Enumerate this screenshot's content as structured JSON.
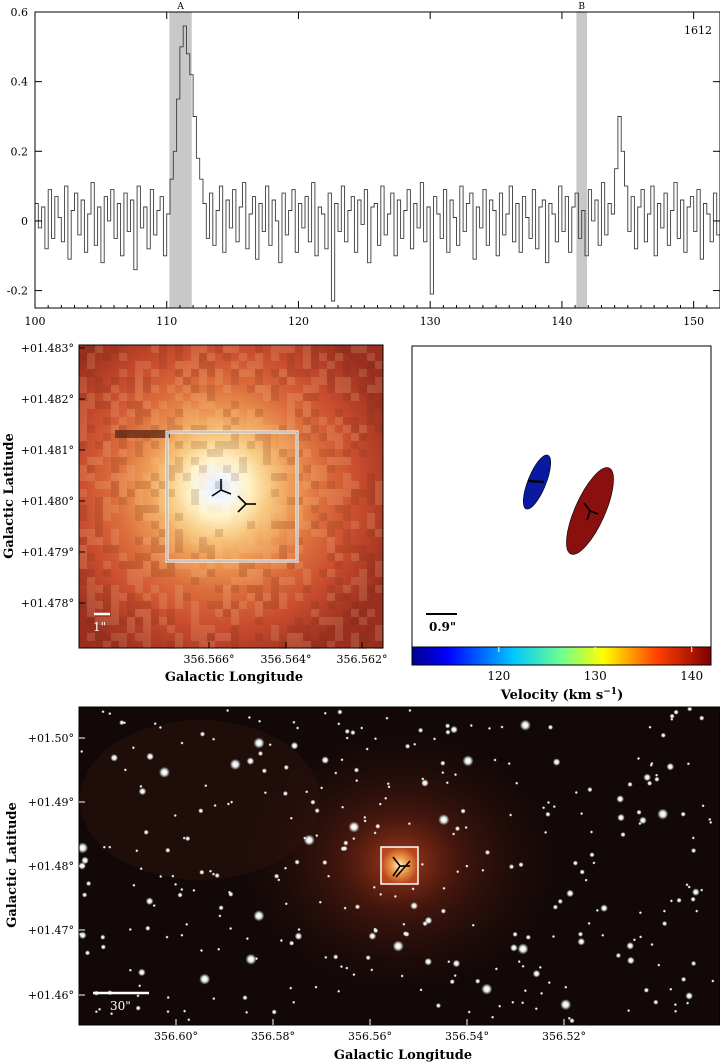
{
  "chart_data": [
    {
      "type": "line",
      "label": "1612",
      "xlim": [
        100,
        152
      ],
      "ylim": [
        -0.25,
        0.6
      ],
      "xticks": [
        100,
        110,
        120,
        130,
        140,
        150
      ],
      "yticks": [
        -0.2,
        0,
        0.2,
        0.4,
        0.6
      ],
      "ytick_labels": [
        "-0.2",
        "0",
        "0.2",
        "0.4",
        "0.6"
      ],
      "shaded_regions": [
        {
          "label": "A",
          "range": [
            110.2,
            111.9
          ]
        },
        {
          "label": "B",
          "range": [
            141.1,
            141.9
          ]
        }
      ],
      "series": [
        {
          "x_start": 100.0,
          "x_step": 0.25,
          "y": [
            0.05,
            -0.02,
            0.04,
            -0.08,
            0.09,
            -0.05,
            0.07,
            0.01,
            -0.06,
            0.1,
            -0.11,
            0.03,
            0.08,
            -0.04,
            0.06,
            -0.09,
            0.02,
            0.11,
            -0.07,
            0.04,
            -0.12,
            0.07,
            0.0,
            0.09,
            -0.05,
            0.05,
            -0.1,
            0.08,
            -0.03,
            0.06,
            -0.14,
            0.1,
            -0.02,
            0.04,
            -0.08,
            0.09,
            -0.04,
            0.03,
            0.07,
            -0.1,
            0.02,
            0.12,
            0.2,
            0.35,
            0.5,
            0.56,
            0.48,
            0.42,
            0.3,
            0.18,
            0.12,
            0.05,
            -0.05,
            0.08,
            -0.07,
            0.03,
            0.1,
            -0.09,
            0.06,
            -0.02,
            0.09,
            -0.06,
            0.04,
            0.11,
            -0.08,
            0.02,
            0.07,
            -0.11,
            0.05,
            -0.03,
            0.1,
            -0.07,
            0.06,
            0.0,
            -0.12,
            0.08,
            -0.04,
            0.03,
            0.09,
            -0.09,
            0.05,
            -0.02,
            0.07,
            -0.06,
            0.11,
            -0.1,
            0.04,
            0.02,
            -0.08,
            0.08,
            -0.23,
            0.05,
            -0.03,
            0.1,
            -0.06,
            0.03,
            0.07,
            -0.09,
            0.06,
            -0.01,
            0.09,
            -0.12,
            0.04,
            0.05,
            -0.07,
            0.1,
            -0.04,
            0.02,
            0.08,
            -0.1,
            0.06,
            -0.05,
            0.03,
            0.09,
            -0.08,
            0.05,
            -0.02,
            0.11,
            -0.06,
            0.04,
            -0.21,
            0.07,
            0.02,
            -0.05,
            0.09,
            -0.09,
            0.06,
            0.01,
            -0.07,
            0.1,
            -0.03,
            0.05,
            0.08,
            -0.11,
            0.04,
            -0.02,
            0.09,
            -0.07,
            0.06,
            0.03,
            -0.1,
            0.08,
            -0.04,
            0.02,
            0.1,
            -0.06,
            0.05,
            -0.09,
            0.07,
            0.01,
            -0.05,
            0.09,
            -0.08,
            0.04,
            0.06,
            -0.12,
            0.05,
            0.02,
            -0.06,
            0.1,
            -0.03,
            0.07,
            -0.09,
            0.04,
            0.08,
            -0.05,
            0.03,
            -0.1,
            0.09,
            0.0,
            0.06,
            -0.07,
            0.11,
            -0.04,
            0.05,
            0.02,
            0.15,
            0.3,
            0.2,
            0.1,
            -0.03,
            0.07,
            -0.08,
            0.04,
            0.09,
            -0.06,
            0.02,
            0.1,
            -0.1,
            0.05,
            -0.02,
            0.08,
            -0.07,
            0.03,
            0.11,
            -0.05,
            0.06,
            -0.09,
            0.04,
            0.07,
            -0.03,
            0.09,
            -0.11,
            0.05,
            0.02,
            -0.06,
            0.08,
            -0.04
          ]
        }
      ]
    },
    {
      "type": "image",
      "ylabel": "Galactic Latitude",
      "xlabel": "Galactic Longitude",
      "xtick_labels": [
        "356.566°",
        "356.564°",
        "356.562°"
      ],
      "ytick_labels": [
        "+01.483°",
        "+01.482°",
        "+01.481°",
        "+01.480°",
        "+01.479°",
        "+01.478°"
      ],
      "scalebar": "1\""
    },
    {
      "type": "scatter",
      "xlabel": "Velocity (km s",
      "xlabel_sup": "−1",
      "xlabel_end": ")",
      "colorbar_range": [
        111,
        142
      ],
      "colorbar_ticks": [
        120,
        130,
        140
      ],
      "scalebar": "0.9\"",
      "ellipses": [
        {
          "velocity": 111,
          "color": "#0a1aa0"
        },
        {
          "velocity": 141,
          "color": "#8a1010"
        }
      ]
    },
    {
      "type": "image",
      "ylabel": "Galactic Latitude",
      "xlabel": "Galactic Longitude",
      "xtick_labels": [
        "356.60°",
        "356.58°",
        "356.56°",
        "356.54°",
        "356.52°"
      ],
      "ytick_labels": [
        "+01.50°",
        "+01.49°",
        "+01.48°",
        "+01.47°",
        "+01.46°"
      ],
      "scalebar": "30\""
    }
  ]
}
